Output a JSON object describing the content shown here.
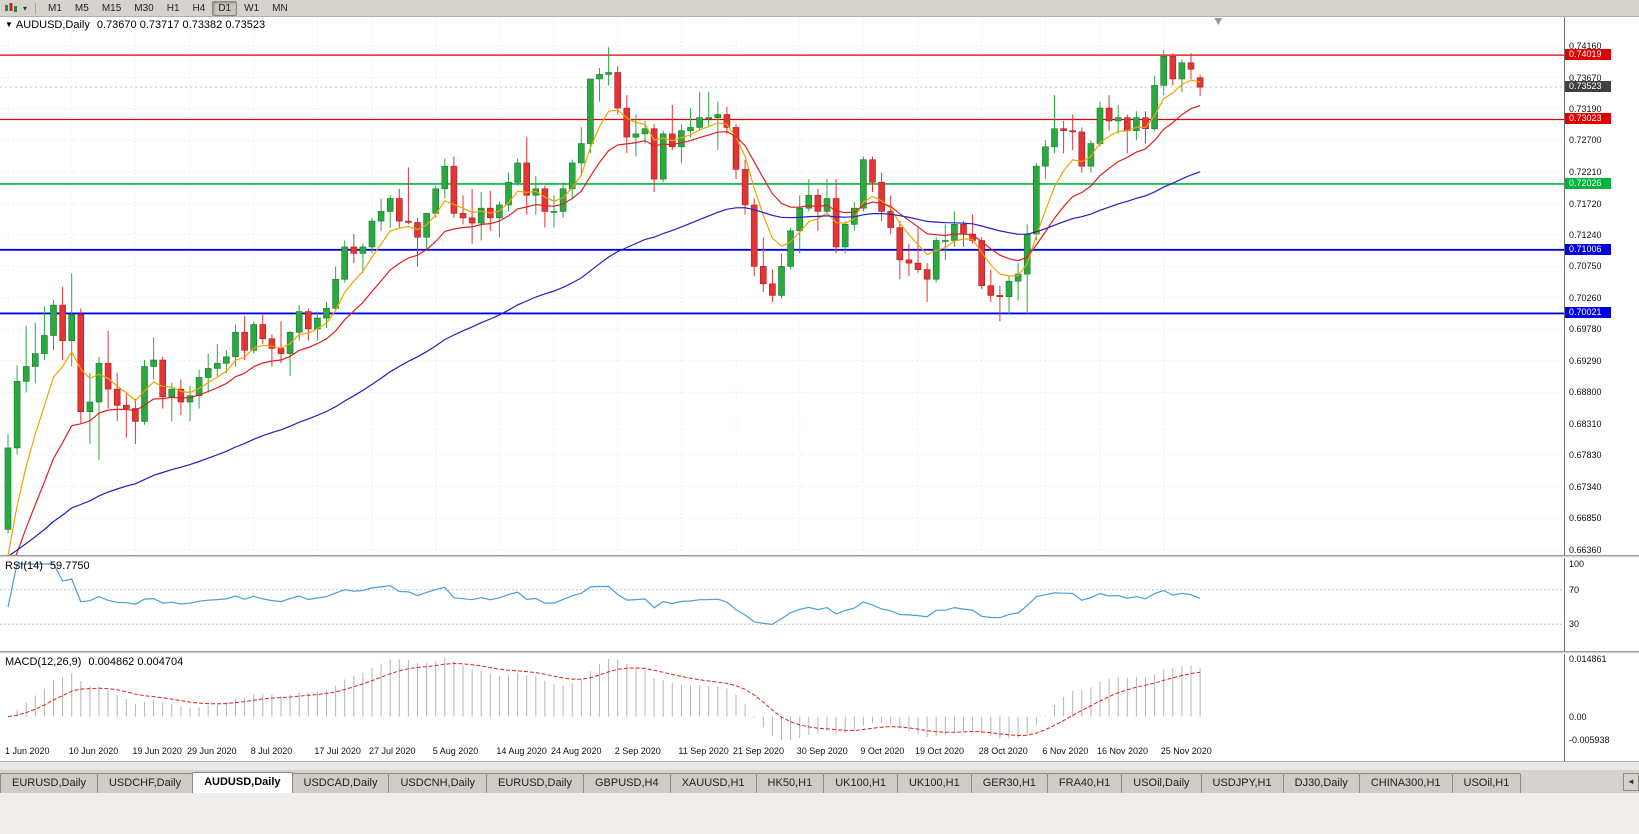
{
  "toolbar": {
    "timeframes": [
      "M1",
      "M5",
      "M15",
      "M30",
      "H1",
      "H4",
      "D1",
      "W1",
      "MN"
    ],
    "active_timeframe": "D1",
    "chart_menu_caret": "▾"
  },
  "main": {
    "collapse_icon": "▼",
    "title_symbol": "AUDUSD,Daily",
    "title_ohlc": "0.73670 0.73717 0.73382 0.73523"
  },
  "rsi": {
    "label": "RSI(14)",
    "value": "59.7750"
  },
  "macd": {
    "label": "MACD(12,26,9)",
    "value": "0.004862 0.004704"
  },
  "tabbar": {
    "tabs": [
      "EURUSD,Daily",
      "USDCHF,Daily",
      "AUDUSD,Daily",
      "USDCAD,Daily",
      "USDCNH,Daily",
      "EURUSD,Daily",
      "GBPUSD,H4",
      "XAUUSD,H1",
      "HK50,H1",
      "UK100,H1",
      "UK100,H1",
      "GER30,H1",
      "FRA40,H1",
      "USOil,Daily",
      "USDJPY,H1",
      "DJ30,Daily",
      "CHINA300,H1",
      "USOil,H1"
    ],
    "active_index": 2,
    "scroll_icon": "◄"
  },
  "chart_data": {
    "type": "candlestick",
    "symbol": "AUDUSD",
    "timeframe": "Daily",
    "title": "AUDUSD,Daily",
    "last_ohlc": {
      "open": 0.7367,
      "high": 0.73717,
      "low": 0.73382,
      "close": 0.73523
    },
    "y_top_value": 0.7416,
    "y_bottom_value": 0.6636,
    "y_ticks": [
      "0.74160",
      "0.73670",
      "0.73190",
      "0.72700",
      "0.72210",
      "0.71720",
      "0.71240",
      "0.70750",
      "0.70260",
      "0.69780",
      "0.69290",
      "0.68800",
      "0.68310",
      "0.67830",
      "0.67340",
      "0.66850",
      "0.66360"
    ],
    "x_labels": [
      {
        "t": "1 Jun 2020",
        "i": 0
      },
      {
        "t": "10 Jun 2020",
        "i": 7
      },
      {
        "t": "19 Jun 2020",
        "i": 14
      },
      {
        "t": "29 Jun 2020",
        "i": 20
      },
      {
        "t": "8 Jul 2020",
        "i": 27
      },
      {
        "t": "17 Jul 2020",
        "i": 34
      },
      {
        "t": "27 Jul 2020",
        "i": 40
      },
      {
        "t": "5 Aug 2020",
        "i": 47
      },
      {
        "t": "14 Aug 2020",
        "i": 54
      },
      {
        "t": "24 Aug 2020",
        "i": 60
      },
      {
        "t": "2 Sep 2020",
        "i": 67
      },
      {
        "t": "11 Sep 2020",
        "i": 74
      },
      {
        "t": "21 Sep 2020",
        "i": 80
      },
      {
        "t": "30 Sep 2020",
        "i": 87
      },
      {
        "t": "9 Oct 2020",
        "i": 94
      },
      {
        "t": "19 Oct 2020",
        "i": 100
      },
      {
        "t": "28 Oct 2020",
        "i": 107
      },
      {
        "t": "6 Nov 2020",
        "i": 114
      },
      {
        "t": "16 Nov 2020",
        "i": 120
      },
      {
        "t": "25 Nov 2020",
        "i": 127
      }
    ],
    "hlines": [
      {
        "value": 0.74019,
        "label": "0.74019",
        "color": "#e00000",
        "w": 1.2
      },
      {
        "value": 0.73023,
        "label": "0.73023",
        "color": "#e00000",
        "w": 1.2
      },
      {
        "value": 0.72026,
        "label": "0.72026",
        "color": "#00b43c",
        "w": 1.6
      },
      {
        "value": 0.71006,
        "label": "0.71006",
        "color": "#0000e0",
        "w": 1.8
      },
      {
        "value": 0.70021,
        "label": "0.70021",
        "color": "#0000e0",
        "w": 1.8
      }
    ],
    "current_price": {
      "value": 0.73523,
      "label": "0.73523",
      "color": "#3f3f3f"
    },
    "moving_averages": [
      {
        "name": "fast",
        "period": 6,
        "seed": 0.656,
        "color": "#f0a400"
      },
      {
        "name": "medium",
        "period": 14,
        "seed": 0.656,
        "color": "#e02020"
      },
      {
        "name": "slow",
        "period": 55,
        "seed": 0.662,
        "color": "#2020c0"
      }
    ],
    "colors": {
      "up": "#2ca841",
      "up_border": "#157a2a",
      "down": "#e23535",
      "down_border": "#aa1f1f",
      "grid": "#e7e7e7"
    },
    "rsi": {
      "period": 14,
      "color": "#4d9dd8",
      "top_label": "100",
      "levels": [
        {
          "v": 70,
          "t": "70"
        },
        {
          "v": 30,
          "t": "30"
        }
      ],
      "range": [
        0,
        100
      ]
    },
    "macd": {
      "fast": 12,
      "slow": 26,
      "signal": 9,
      "bar_color": "#b4b4b4",
      "signal_color": "#e02020",
      "max": 0.014861,
      "min": -0.005938,
      "axis": [
        {
          "v": 0.014861,
          "t": "0.014861"
        },
        {
          "v": 0,
          "t": "0.00"
        },
        {
          "v": -0.005938,
          "t": "-0.005938"
        }
      ]
    },
    "ohlc": [
      [
        0.6668,
        0.6815,
        0.6662,
        0.6794
      ],
      [
        0.6794,
        0.6922,
        0.6784,
        0.6897
      ],
      [
        0.6897,
        0.6983,
        0.688,
        0.692
      ],
      [
        0.692,
        0.6988,
        0.6894,
        0.694
      ],
      [
        0.694,
        0.7013,
        0.693,
        0.6968
      ],
      [
        0.6968,
        0.7023,
        0.6945,
        0.7015
      ],
      [
        0.7015,
        0.7043,
        0.693,
        0.696
      ],
      [
        0.696,
        0.7064,
        0.692,
        0.7
      ],
      [
        0.7,
        0.701,
        0.6832,
        0.685
      ],
      [
        0.685,
        0.691,
        0.68,
        0.6865
      ],
      [
        0.6865,
        0.6935,
        0.6775,
        0.6925
      ],
      [
        0.6925,
        0.6975,
        0.6855,
        0.6885
      ],
      [
        0.6885,
        0.691,
        0.6835,
        0.686
      ],
      [
        0.686,
        0.688,
        0.681,
        0.6855
      ],
      [
        0.6855,
        0.687,
        0.68,
        0.6835
      ],
      [
        0.6835,
        0.693,
        0.683,
        0.692
      ],
      [
        0.692,
        0.6965,
        0.69,
        0.693
      ],
      [
        0.693,
        0.6935,
        0.6855,
        0.6873
      ],
      [
        0.6873,
        0.6895,
        0.6835,
        0.6885
      ],
      [
        0.6885,
        0.69,
        0.6845,
        0.6865
      ],
      [
        0.6865,
        0.689,
        0.6835,
        0.6875
      ],
      [
        0.6875,
        0.6915,
        0.6855,
        0.6903
      ],
      [
        0.6903,
        0.694,
        0.688,
        0.6917
      ],
      [
        0.6917,
        0.6955,
        0.6905,
        0.6925
      ],
      [
        0.6925,
        0.6945,
        0.691,
        0.6935
      ],
      [
        0.6935,
        0.6985,
        0.692,
        0.6973
      ],
      [
        0.6973,
        0.6998,
        0.693,
        0.6945
      ],
      [
        0.6945,
        0.699,
        0.694,
        0.6985
      ],
      [
        0.6985,
        0.7,
        0.6955,
        0.6963
      ],
      [
        0.6963,
        0.697,
        0.692,
        0.6948
      ],
      [
        0.6948,
        0.699,
        0.6925,
        0.694
      ],
      [
        0.694,
        0.6975,
        0.6905,
        0.6973
      ],
      [
        0.6973,
        0.7015,
        0.696,
        0.7005
      ],
      [
        0.7005,
        0.701,
        0.696,
        0.6978
      ],
      [
        0.6978,
        0.7005,
        0.696,
        0.6995
      ],
      [
        0.6995,
        0.702,
        0.698,
        0.701
      ],
      [
        0.701,
        0.7075,
        0.7005,
        0.7055
      ],
      [
        0.7055,
        0.7115,
        0.705,
        0.7105
      ],
      [
        0.7105,
        0.7125,
        0.708,
        0.7095
      ],
      [
        0.7095,
        0.711,
        0.7065,
        0.7105
      ],
      [
        0.7105,
        0.715,
        0.7095,
        0.7145
      ],
      [
        0.7145,
        0.718,
        0.713,
        0.716
      ],
      [
        0.716,
        0.7185,
        0.7135,
        0.718
      ],
      [
        0.718,
        0.7195,
        0.7135,
        0.7145
      ],
      [
        0.7145,
        0.7228,
        0.714,
        0.7143
      ],
      [
        0.7143,
        0.715,
        0.7075,
        0.712
      ],
      [
        0.712,
        0.7158,
        0.71,
        0.7157
      ],
      [
        0.7157,
        0.72,
        0.715,
        0.7195
      ],
      [
        0.7195,
        0.7242,
        0.718,
        0.723
      ],
      [
        0.723,
        0.7245,
        0.715,
        0.7157
      ],
      [
        0.7157,
        0.7185,
        0.714,
        0.715
      ],
      [
        0.715,
        0.7195,
        0.711,
        0.7142
      ],
      [
        0.7142,
        0.719,
        0.7115,
        0.7165
      ],
      [
        0.7165,
        0.7192,
        0.713,
        0.715
      ],
      [
        0.715,
        0.7175,
        0.712,
        0.717
      ],
      [
        0.717,
        0.722,
        0.716,
        0.7205
      ],
      [
        0.7205,
        0.7242,
        0.72,
        0.7235
      ],
      [
        0.7235,
        0.7275,
        0.7155,
        0.7185
      ],
      [
        0.7185,
        0.7215,
        0.7155,
        0.7195
      ],
      [
        0.7195,
        0.72,
        0.7135,
        0.716
      ],
      [
        0.716,
        0.7185,
        0.7135,
        0.716
      ],
      [
        0.716,
        0.7205,
        0.715,
        0.7195
      ],
      [
        0.7195,
        0.724,
        0.718,
        0.7235
      ],
      [
        0.7235,
        0.729,
        0.7215,
        0.7265
      ],
      [
        0.7265,
        0.7365,
        0.725,
        0.7365
      ],
      [
        0.7365,
        0.7382,
        0.733,
        0.7372
      ],
      [
        0.7372,
        0.7414,
        0.7355,
        0.7375
      ],
      [
        0.7375,
        0.7385,
        0.731,
        0.732
      ],
      [
        0.732,
        0.734,
        0.725,
        0.7275
      ],
      [
        0.7275,
        0.731,
        0.7245,
        0.728
      ],
      [
        0.728,
        0.73,
        0.7265,
        0.7288
      ],
      [
        0.7288,
        0.7295,
        0.719,
        0.721
      ],
      [
        0.721,
        0.7285,
        0.7205,
        0.728
      ],
      [
        0.728,
        0.7325,
        0.7255,
        0.726
      ],
      [
        0.726,
        0.7295,
        0.7235,
        0.7285
      ],
      [
        0.7285,
        0.732,
        0.7275,
        0.729
      ],
      [
        0.729,
        0.7345,
        0.7285,
        0.7305
      ],
      [
        0.7305,
        0.7345,
        0.729,
        0.7305
      ],
      [
        0.7305,
        0.733,
        0.7255,
        0.731
      ],
      [
        0.731,
        0.7322,
        0.728,
        0.729
      ],
      [
        0.729,
        0.7295,
        0.721,
        0.7225
      ],
      [
        0.7225,
        0.724,
        0.7155,
        0.717
      ],
      [
        0.717,
        0.718,
        0.706,
        0.7075
      ],
      [
        0.7075,
        0.712,
        0.7035,
        0.7048
      ],
      [
        0.7048,
        0.707,
        0.702,
        0.703
      ],
      [
        0.703,
        0.7095,
        0.7025,
        0.7075
      ],
      [
        0.7075,
        0.7135,
        0.707,
        0.713
      ],
      [
        0.713,
        0.7185,
        0.7095,
        0.7165
      ],
      [
        0.7165,
        0.721,
        0.716,
        0.7185
      ],
      [
        0.7185,
        0.7195,
        0.713,
        0.716
      ],
      [
        0.716,
        0.721,
        0.7155,
        0.718
      ],
      [
        0.718,
        0.721,
        0.7095,
        0.7105
      ],
      [
        0.7105,
        0.7145,
        0.7095,
        0.714
      ],
      [
        0.714,
        0.7175,
        0.713,
        0.7165
      ],
      [
        0.7165,
        0.7245,
        0.716,
        0.724
      ],
      [
        0.724,
        0.7245,
        0.719,
        0.7205
      ],
      [
        0.7205,
        0.722,
        0.7145,
        0.716
      ],
      [
        0.716,
        0.7185,
        0.7125,
        0.7135
      ],
      [
        0.7135,
        0.7145,
        0.7055,
        0.7085
      ],
      [
        0.7085,
        0.711,
        0.706,
        0.708
      ],
      [
        0.708,
        0.7135,
        0.7065,
        0.707
      ],
      [
        0.707,
        0.708,
        0.702,
        0.7055
      ],
      [
        0.7055,
        0.712,
        0.705,
        0.7115
      ],
      [
        0.7115,
        0.714,
        0.7085,
        0.7115
      ],
      [
        0.7115,
        0.716,
        0.7105,
        0.714
      ],
      [
        0.714,
        0.7145,
        0.7105,
        0.7125
      ],
      [
        0.7125,
        0.7155,
        0.711,
        0.7115
      ],
      [
        0.7115,
        0.712,
        0.704,
        0.7045
      ],
      [
        0.7045,
        0.707,
        0.702,
        0.703
      ],
      [
        0.703,
        0.7045,
        0.699,
        0.7028
      ],
      [
        0.7028,
        0.706,
        0.7,
        0.7052
      ],
      [
        0.7052,
        0.708,
        0.7022,
        0.7063
      ],
      [
        0.7063,
        0.714,
        0.7,
        0.7125
      ],
      [
        0.7125,
        0.7235,
        0.7115,
        0.723
      ],
      [
        0.723,
        0.727,
        0.721,
        0.726
      ],
      [
        0.726,
        0.734,
        0.725,
        0.7288
      ],
      [
        0.7288,
        0.73,
        0.725,
        0.7285
      ],
      [
        0.7285,
        0.731,
        0.7255,
        0.7283
      ],
      [
        0.7283,
        0.729,
        0.722,
        0.723
      ],
      [
        0.723,
        0.727,
        0.722,
        0.7265
      ],
      [
        0.7265,
        0.733,
        0.726,
        0.732
      ],
      [
        0.732,
        0.734,
        0.7285,
        0.73
      ],
      [
        0.73,
        0.7325,
        0.728,
        0.7305
      ],
      [
        0.7305,
        0.731,
        0.725,
        0.7285
      ],
      [
        0.7285,
        0.7315,
        0.727,
        0.7305
      ],
      [
        0.7305,
        0.7315,
        0.7265,
        0.7288
      ],
      [
        0.7288,
        0.737,
        0.7285,
        0.7355
      ],
      [
        0.7355,
        0.741,
        0.734,
        0.74
      ],
      [
        0.74,
        0.7405,
        0.7355,
        0.7365
      ],
      [
        0.7365,
        0.7395,
        0.7345,
        0.739
      ],
      [
        0.739,
        0.7405,
        0.7365,
        0.738
      ],
      [
        0.7367,
        0.73717,
        0.73382,
        0.73523
      ]
    ]
  }
}
